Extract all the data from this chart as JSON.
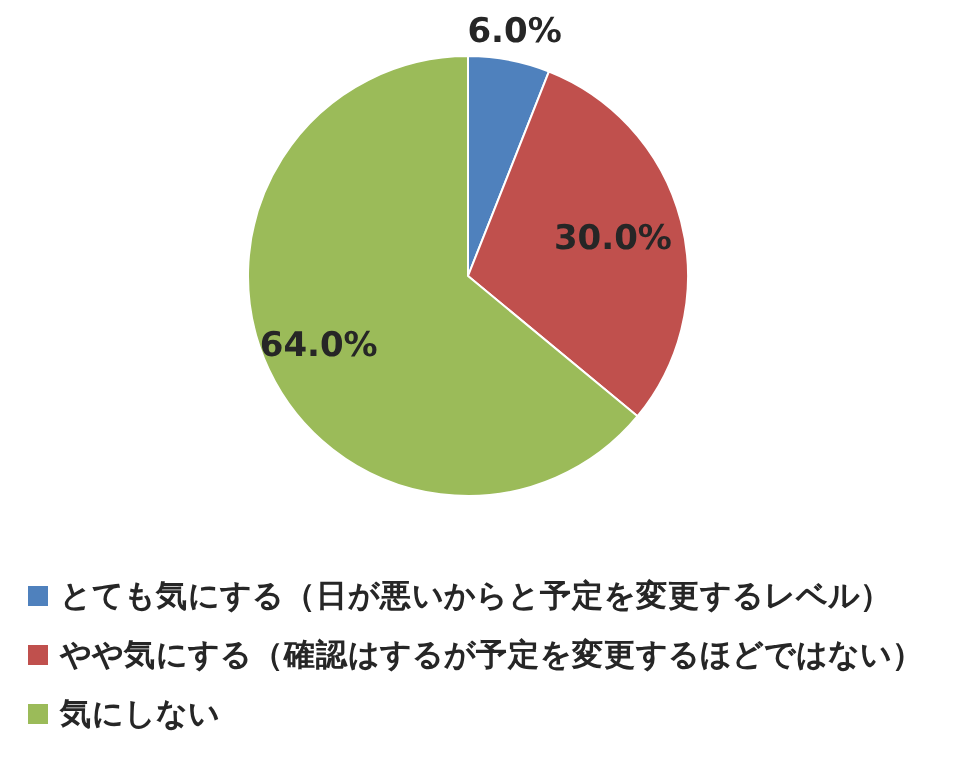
{
  "chart_data": {
    "type": "pie",
    "categories": [
      "とても気にする（日が悪いからと予定を変更するレベル）",
      "やや気にする（確認はするが予定を変更するほどではない）",
      "気にしない"
    ],
    "values": [
      6,
      30,
      64
    ],
    "colors": [
      "#4f81bd",
      "#c0504d",
      "#9bbb59"
    ],
    "value_labels": [
      "6.0%",
      "30.0%",
      "64.0%"
    ],
    "legend": "bottom"
  }
}
